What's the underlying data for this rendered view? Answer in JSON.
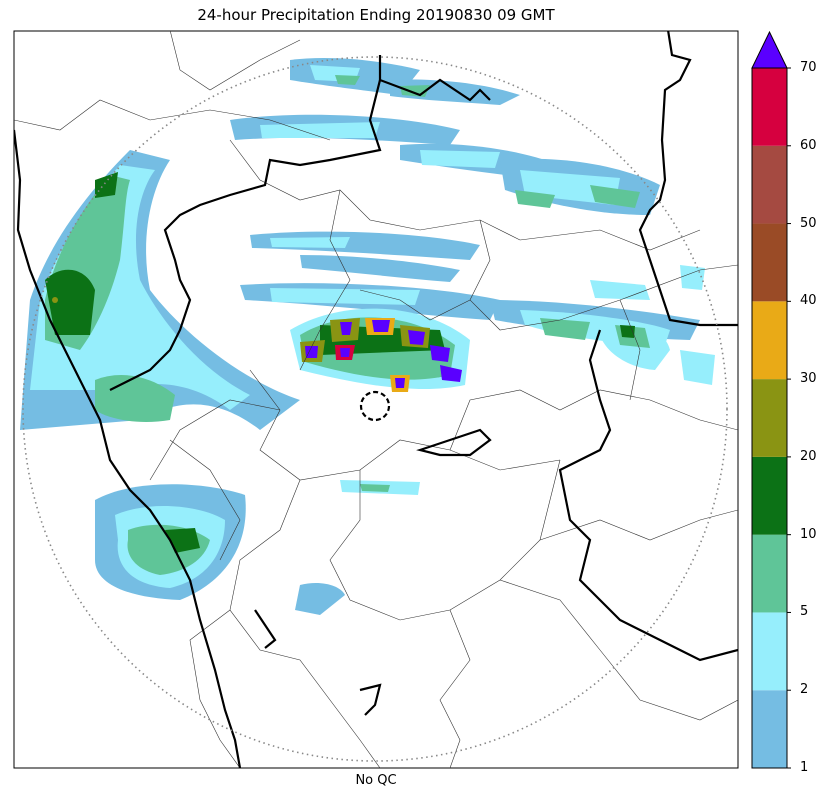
{
  "title": "24-hour Precipitation Ending 20190830 09 GMT",
  "xlabel": "No QC",
  "colorbar": {
    "ticks": [
      "1",
      "2",
      "5",
      "10",
      "20",
      "30",
      "40",
      "50",
      "60",
      "70"
    ],
    "colors": [
      "#75bde3",
      "#96eefc",
      "#5fc598",
      "#0c7216",
      "#8a9413",
      "#e9aa17",
      "#9a4b26",
      "#a54a41",
      "#d6003f"
    ],
    "extend_color": "#5a00ff"
  },
  "colors": {
    "border_thick": "#000000",
    "border_thin": "#333333",
    "range_ring": "#888888"
  }
}
